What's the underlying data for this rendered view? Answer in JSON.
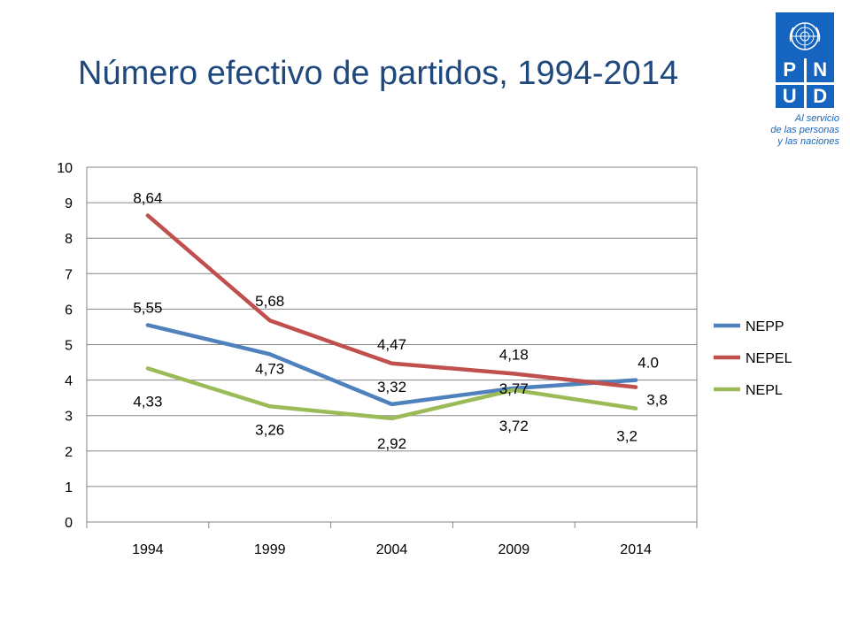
{
  "logo": {
    "letters": [
      "P",
      "N",
      "U",
      "D"
    ],
    "tagline": [
      "Al servicio",
      "de las personas",
      "y las naciones"
    ],
    "color": "#1565C0"
  },
  "chart_data": {
    "type": "line",
    "title": "Número efectivo de partidos, 1994-2014",
    "xlabel": "",
    "ylabel": "",
    "categories": [
      "1994",
      "1999",
      "2004",
      "2009",
      "2014"
    ],
    "ylim": [
      0,
      10
    ],
    "yticks": [
      "0",
      "1",
      "2",
      "3",
      "4",
      "5",
      "6",
      "7",
      "8",
      "9",
      "10"
    ],
    "grid": true,
    "legend_position": "right",
    "series": [
      {
        "name": "NEPP",
        "color": "#4F81BD",
        "values": [
          5.55,
          4.73,
          3.32,
          3.77,
          4.0
        ],
        "labels": [
          "5,55",
          "4,73",
          "3,32",
          "3,77",
          "4.0"
        ]
      },
      {
        "name": "NEPEL",
        "color": "#C0504D",
        "values": [
          8.64,
          5.68,
          4.47,
          4.18,
          3.8
        ],
        "labels": [
          "8,64",
          "5,68",
          "4,47",
          "4,18",
          "3,8"
        ]
      },
      {
        "name": "NEPL",
        "color": "#9BBB59",
        "values": [
          4.33,
          3.26,
          2.92,
          3.72,
          3.2
        ],
        "labels": [
          "4,33",
          "3,26",
          "2,92",
          "3,72",
          "3,2"
        ]
      }
    ]
  }
}
